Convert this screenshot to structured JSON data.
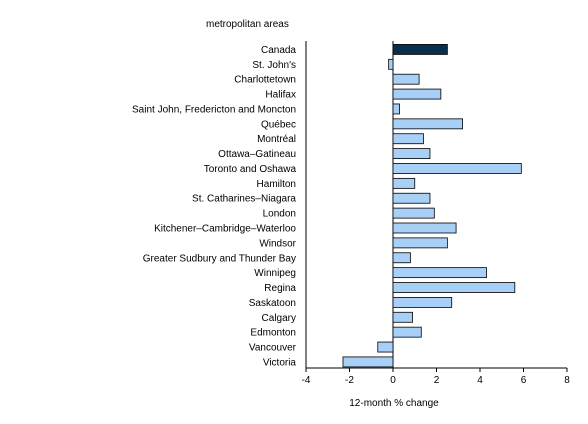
{
  "chart_data": {
    "type": "bar",
    "orientation": "horizontal",
    "category_axis_title": "metropolitan areas",
    "xlabel": "12-month % change",
    "xlim": [
      -4,
      8
    ],
    "xticks": [
      "-4",
      "-2",
      "0",
      "2",
      "4",
      "6",
      "8"
    ],
    "grid": false,
    "categories": [
      "Canada",
      "St. John's",
      "Charlottetown",
      "Halifax",
      "Saint John, Fredericton and Moncton",
      "Québec",
      "Montréal",
      "Ottawa–Gatineau",
      "Toronto and Oshawa",
      "Hamilton",
      "St. Catharines–Niagara",
      "London",
      "Kitchener–Cambridge–Waterloo",
      "Windsor",
      "Greater Sudbury and Thunder Bay",
      "Winnipeg",
      "Regina",
      "Saskatoon",
      "Calgary",
      "Edmonton",
      "Vancouver",
      "Victoria"
    ],
    "values": [
      2.5,
      -0.2,
      1.2,
      2.2,
      0.3,
      3.2,
      1.4,
      1.7,
      5.9,
      1.0,
      1.7,
      1.9,
      2.9,
      2.5,
      0.8,
      4.3,
      5.6,
      2.7,
      0.9,
      1.3,
      -0.7,
      -2.3
    ],
    "highlight": "Canada",
    "colors": {
      "highlight": "#0b2d4f",
      "bar": "#a8cff5",
      "bar_stroke": "#000000",
      "axis": "#000000"
    }
  }
}
